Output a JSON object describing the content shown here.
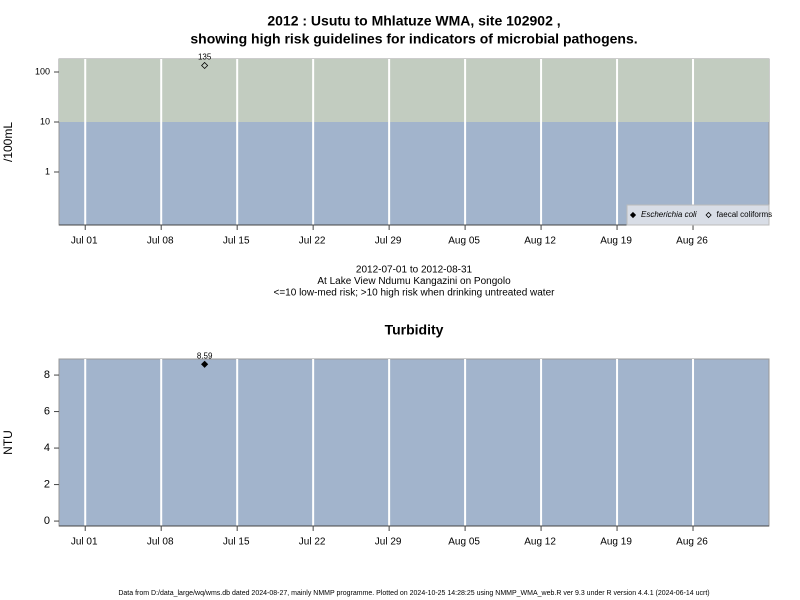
{
  "chart_data": [
    {
      "type": "scatter",
      "title": [
        "2012 : Usutu to Mhlatuze WMA, site 102902 ,",
        "showing high risk guidelines for indicators of microbial pathogens."
      ],
      "y_label": "/100mL",
      "notes": [
        "2012-07-01 to 2012-08-31",
        "At Lake View Ndumu Kangazini on Pongolo",
        "<=10 low-med risk; >10 high risk when drinking untreated water"
      ],
      "x": [
        "2012-07-12"
      ],
      "series": [
        {
          "name": "Escherichia coli",
          "color": "#000000",
          "marker": "filled",
          "values": [
            null
          ]
        },
        {
          "name": "faecal coliforms",
          "color": "#000000",
          "marker": "open",
          "values": [
            135
          ]
        }
      ],
      "log_y": true,
      "ylim": [
        0.087,
        182
      ],
      "yticks": [
        1,
        10,
        100
      ],
      "xlim": [
        "2012-06-28T14:00Z",
        "2012-09-02T00:00Z"
      ],
      "xticks": [
        {
          "value": "2012-07-01",
          "label": "Jul 01"
        },
        {
          "value": "2012-07-08",
          "label": "Jul 08"
        },
        {
          "value": "2012-07-15",
          "label": "Jul 15"
        },
        {
          "value": "2012-07-22",
          "label": "Jul 22"
        },
        {
          "value": "2012-07-29",
          "label": "Jul 29"
        },
        {
          "value": "2012-08-05",
          "label": "Aug 05"
        },
        {
          "value": "2012-08-12",
          "label": "Aug 12"
        },
        {
          "value": "2012-08-19",
          "label": "Aug 19"
        },
        {
          "value": "2012-08-26",
          "label": "Aug 26"
        }
      ],
      "grid": "x",
      "background_color": "#a2b4cc",
      "high_risk_threshold": 10,
      "high_risk_color": "#c2ccc0",
      "legend": "bottom-right"
    },
    {
      "type": "scatter",
      "title": "Turbidity",
      "y_label": "NTU",
      "x": [
        "2012-07-12"
      ],
      "values": [
        8.59
      ],
      "color": "#000000",
      "marker": "filled",
      "ylim": [
        -0.27,
        8.88
      ],
      "yticks": [
        0,
        2,
        4,
        6,
        8
      ],
      "xlim": [
        "2012-06-28T14:00Z",
        "2012-09-02T00:00Z"
      ],
      "xticks": [
        {
          "value": "2012-07-01",
          "label": "Jul 01"
        },
        {
          "value": "2012-07-08",
          "label": "Jul 08"
        },
        {
          "value": "2012-07-15",
          "label": "Jul 15"
        },
        {
          "value": "2012-07-22",
          "label": "Jul 22"
        },
        {
          "value": "2012-07-29",
          "label": "Jul 29"
        },
        {
          "value": "2012-08-05",
          "label": "Aug 05"
        },
        {
          "value": "2012-08-12",
          "label": "Aug 12"
        },
        {
          "value": "2012-08-19",
          "label": "Aug 19"
        },
        {
          "value": "2012-08-26",
          "label": "Aug 26"
        }
      ],
      "grid": "x",
      "background_color": "#a2b4cc"
    }
  ],
  "footer": "Data from D:/data_large/wq/wms.db dated 2024-08-27, mainly NMMP programme. Plotted on 2024-10-25 14:28:25 using NMMP_WMA_web.R ver 9.3 under R version 4.4.1 (2024-06-14 ucrt)"
}
